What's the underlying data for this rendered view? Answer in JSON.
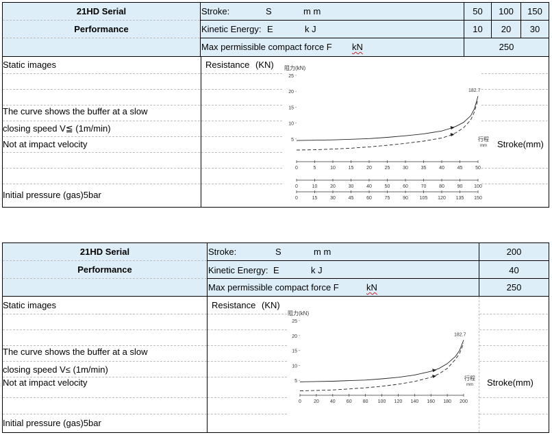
{
  "table1": {
    "title": "21HD Serial",
    "subtitle": "Performance",
    "stroke_label": "Stroke:",
    "stroke_sym": "S",
    "stroke_unit": "m m",
    "energy_label": "Kinetic Energy:",
    "energy_sym": "E",
    "energy_unit": "k J",
    "force_label": "Max permissible compact force F",
    "force_unit": "kN",
    "strokes": [
      "50",
      "100",
      "150"
    ],
    "energies": [
      "10",
      "20",
      "30"
    ],
    "force_value": "250",
    "static_images": "Static images",
    "resistance": "Resistance",
    "resistance_unit": "(KN)",
    "note_line1": "The curve shows the buffer at a slow",
    "note_line2": "closing speed V≦ (1m/min)",
    "note_line3": "Not at impact velocity",
    "initial_pressure": "Initial pressure (gas)5bar",
    "stroke_right": "Stroke(mm)"
  },
  "table2": {
    "title": "21HD Serial",
    "subtitle": "Performance",
    "stroke_label": "Stroke:",
    "stroke_sym": "S",
    "stroke_unit": "m m",
    "energy_label": "Kinetic Energy:",
    "energy_sym": "E",
    "energy_unit": "k J",
    "force_label": "Max permissible compact force F",
    "force_unit": "kN",
    "stroke_value": "200",
    "energy_value": "40",
    "force_value": "250",
    "static_images": "Static images",
    "resistance": "Resistance",
    "resistance_unit": "(KN)",
    "note_line1": "The curve shows the buffer at a slow",
    "note_line2": "closing speed V≤ (1m/min)",
    "note_line3": "Not at impact velocity",
    "initial_pressure": "Initial pressure (gas)5bar",
    "stroke_right": "Stroke(mm)"
  },
  "chart_data": [
    {
      "type": "line",
      "ylabel": "阻力(kN)",
      "xlabel": "行程 mm",
      "ylim": [
        0,
        25
      ],
      "yticks": [
        "5",
        "10",
        "15",
        "20",
        "25"
      ],
      "peak_label": "182.7",
      "x_axes": [
        {
          "max": 50,
          "ticks": [
            "0",
            "5",
            "10",
            "15",
            "20",
            "25",
            "30",
            "35",
            "40",
            "45",
            "50"
          ]
        },
        {
          "max": 100,
          "ticks": [
            "0",
            "10",
            "20",
            "30",
            "40",
            "50",
            "60",
            "70",
            "80",
            "90",
            "100"
          ]
        },
        {
          "max": 150,
          "ticks": [
            "0",
            "15",
            "30",
            "45",
            "60",
            "75",
            "90",
            "105",
            "120",
            "135",
            "150"
          ]
        }
      ],
      "series": [
        {
          "style": "solid",
          "x": [
            0,
            5,
            10,
            15,
            20,
            25,
            30,
            35,
            40,
            42,
            44,
            46,
            48,
            49,
            50
          ],
          "y": [
            4.5,
            4.6,
            4.7,
            4.9,
            5.1,
            5.5,
            6.0,
            6.6,
            7.5,
            8.2,
            9.0,
            10.2,
            12.3,
            14.5,
            18.5
          ]
        },
        {
          "style": "dashed",
          "x": [
            0,
            5,
            10,
            15,
            20,
            25,
            30,
            35,
            40,
            42,
            44,
            46,
            48,
            49,
            50
          ],
          "y": [
            1.5,
            1.6,
            1.8,
            2.1,
            2.5,
            3.0,
            3.6,
            4.3,
            5.3,
            6.0,
            7.0,
            8.5,
            11.0,
            13.5,
            17.5
          ]
        }
      ]
    },
    {
      "type": "line",
      "ylabel": "阻力(kN)",
      "xlabel": "行程 mm",
      "ylim": [
        0,
        25
      ],
      "yticks": [
        "5",
        "10",
        "15",
        "20",
        "25"
      ],
      "peak_label": "182.7",
      "x_axes": [
        {
          "max": 200,
          "ticks": [
            "0",
            "20",
            "40",
            "60",
            "80",
            "100",
            "120",
            "140",
            "160",
            "180",
            "200"
          ]
        }
      ],
      "series": [
        {
          "style": "solid",
          "x": [
            0,
            20,
            40,
            60,
            80,
            100,
            120,
            140,
            160,
            170,
            180,
            190,
            195,
            200
          ],
          "y": [
            4.5,
            4.6,
            4.7,
            4.9,
            5.1,
            5.5,
            6.0,
            6.8,
            8.0,
            9.0,
            10.6,
            13.0,
            15.0,
            18.5
          ]
        },
        {
          "style": "dashed",
          "x": [
            0,
            20,
            40,
            60,
            80,
            100,
            120,
            140,
            160,
            170,
            180,
            190,
            195,
            200
          ],
          "y": [
            1.5,
            1.6,
            1.8,
            2.1,
            2.5,
            3.0,
            3.7,
            4.6,
            6.0,
            7.2,
            9.0,
            12.0,
            14.0,
            17.5
          ]
        }
      ]
    }
  ]
}
